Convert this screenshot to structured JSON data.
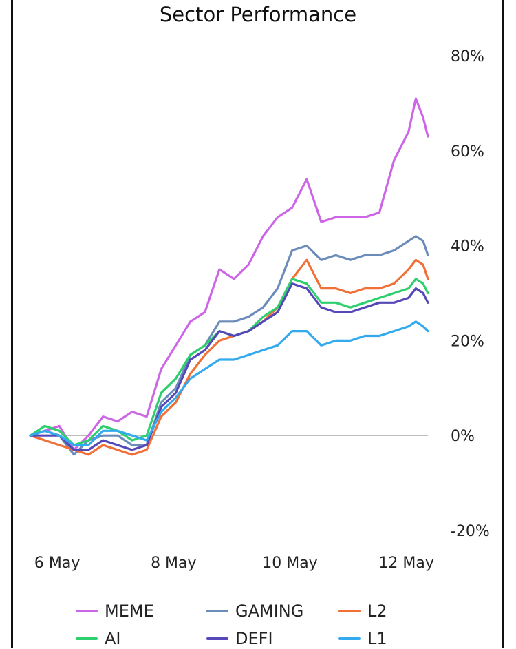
{
  "chart_data": {
    "type": "line",
    "title": "Sector Performance",
    "xlabel": "",
    "ylabel": "",
    "x_ticks": [
      "6 May",
      "8 May",
      "10 May",
      "12 May"
    ],
    "y_ticks": [
      "80%",
      "60%",
      "40%",
      "20%",
      "0%",
      "-20%"
    ],
    "ylim": [
      -20,
      80
    ],
    "y_unit": "%",
    "legend_position": "bottom",
    "baseline_zero": true,
    "x_start": "2024-05-05 18:00",
    "x_end": "2024-05-12 14:00",
    "series": [
      {
        "name": "MEME",
        "color": "#cc66e6",
        "x": [
          "2024-05-05 18:00",
          "2024-05-06 00:00",
          "2024-05-06 06:00",
          "2024-05-06 12:00",
          "2024-05-06 18:00",
          "2024-05-07 00:00",
          "2024-05-07 06:00",
          "2024-05-07 12:00",
          "2024-05-07 18:00",
          "2024-05-08 00:00",
          "2024-05-08 06:00",
          "2024-05-08 12:00",
          "2024-05-08 18:00",
          "2024-05-09 00:00",
          "2024-05-09 06:00",
          "2024-05-09 12:00",
          "2024-05-09 18:00",
          "2024-05-10 00:00",
          "2024-05-10 06:00",
          "2024-05-10 12:00",
          "2024-05-10 18:00",
          "2024-05-11 00:00",
          "2024-05-11 06:00",
          "2024-05-11 12:00",
          "2024-05-11 18:00",
          "2024-05-12 00:00",
          "2024-05-12 06:00",
          "2024-05-12 09:00",
          "2024-05-12 12:00",
          "2024-05-12 14:00"
        ],
        "values": [
          0,
          1,
          2,
          -3,
          0,
          4,
          3,
          5,
          4,
          14,
          19,
          24,
          26,
          35,
          33,
          36,
          42,
          46,
          48,
          54,
          45,
          46,
          46,
          46,
          47,
          58,
          64,
          71,
          67,
          63
        ]
      },
      {
        "name": "GAMING",
        "color": "#6b8cba",
        "x": [
          "2024-05-05 18:00",
          "2024-05-06 00:00",
          "2024-05-06 06:00",
          "2024-05-06 12:00",
          "2024-05-06 18:00",
          "2024-05-07 00:00",
          "2024-05-07 06:00",
          "2024-05-07 12:00",
          "2024-05-07 18:00",
          "2024-05-08 00:00",
          "2024-05-08 06:00",
          "2024-05-08 12:00",
          "2024-05-08 18:00",
          "2024-05-09 00:00",
          "2024-05-09 06:00",
          "2024-05-09 12:00",
          "2024-05-09 18:00",
          "2024-05-10 00:00",
          "2024-05-10 06:00",
          "2024-05-10 12:00",
          "2024-05-10 18:00",
          "2024-05-11 00:00",
          "2024-05-11 06:00",
          "2024-05-11 12:00",
          "2024-05-11 18:00",
          "2024-05-12 00:00",
          "2024-05-12 06:00",
          "2024-05-12 09:00",
          "2024-05-12 12:00",
          "2024-05-12 14:00"
        ],
        "values": [
          0,
          1,
          0,
          -4,
          -1,
          0,
          0,
          -2,
          -2,
          7,
          10,
          17,
          19,
          24,
          24,
          25,
          27,
          31,
          39,
          40,
          37,
          38,
          37,
          38,
          38,
          39,
          41,
          42,
          41,
          38
        ]
      },
      {
        "name": "L2",
        "color": "#f07038",
        "x": [
          "2024-05-05 18:00",
          "2024-05-06 00:00",
          "2024-05-06 06:00",
          "2024-05-06 12:00",
          "2024-05-06 18:00",
          "2024-05-07 00:00",
          "2024-05-07 06:00",
          "2024-05-07 12:00",
          "2024-05-07 18:00",
          "2024-05-08 00:00",
          "2024-05-08 06:00",
          "2024-05-08 12:00",
          "2024-05-08 18:00",
          "2024-05-09 00:00",
          "2024-05-09 06:00",
          "2024-05-09 12:00",
          "2024-05-09 18:00",
          "2024-05-10 00:00",
          "2024-05-10 06:00",
          "2024-05-10 12:00",
          "2024-05-10 18:00",
          "2024-05-11 00:00",
          "2024-05-11 06:00",
          "2024-05-11 12:00",
          "2024-05-11 18:00",
          "2024-05-12 00:00",
          "2024-05-12 06:00",
          "2024-05-12 09:00",
          "2024-05-12 12:00",
          "2024-05-12 14:00"
        ],
        "values": [
          0,
          -1,
          -2,
          -3,
          -4,
          -2,
          -3,
          -4,
          -3,
          4,
          7,
          13,
          17,
          20,
          21,
          22,
          24,
          27,
          33,
          37,
          31,
          31,
          30,
          31,
          31,
          32,
          35,
          37,
          36,
          33
        ]
      },
      {
        "name": "AI",
        "color": "#2ed06e",
        "x": [
          "2024-05-05 18:00",
          "2024-05-06 00:00",
          "2024-05-06 06:00",
          "2024-05-06 12:00",
          "2024-05-06 18:00",
          "2024-05-07 00:00",
          "2024-05-07 06:00",
          "2024-05-07 12:00",
          "2024-05-07 18:00",
          "2024-05-08 00:00",
          "2024-05-08 06:00",
          "2024-05-08 12:00",
          "2024-05-08 18:00",
          "2024-05-09 00:00",
          "2024-05-09 06:00",
          "2024-05-09 12:00",
          "2024-05-09 18:00",
          "2024-05-10 00:00",
          "2024-05-10 06:00",
          "2024-05-10 12:00",
          "2024-05-10 18:00",
          "2024-05-11 00:00",
          "2024-05-11 06:00",
          "2024-05-11 12:00",
          "2024-05-11 18:00",
          "2024-05-12 00:00",
          "2024-05-12 06:00",
          "2024-05-12 09:00",
          "2024-05-12 12:00",
          "2024-05-12 14:00"
        ],
        "values": [
          0,
          2,
          1,
          -2,
          -1,
          2,
          1,
          -1,
          0,
          9,
          12,
          17,
          19,
          22,
          21,
          22,
          25,
          27,
          33,
          32,
          28,
          28,
          27,
          28,
          29,
          30,
          31,
          33,
          32,
          30
        ]
      },
      {
        "name": "DEFI",
        "color": "#5548b8",
        "x": [
          "2024-05-05 18:00",
          "2024-05-06 00:00",
          "2024-05-06 06:00",
          "2024-05-06 12:00",
          "2024-05-06 18:00",
          "2024-05-07 00:00",
          "2024-05-07 06:00",
          "2024-05-07 12:00",
          "2024-05-07 18:00",
          "2024-05-08 00:00",
          "2024-05-08 06:00",
          "2024-05-08 12:00",
          "2024-05-08 18:00",
          "2024-05-09 00:00",
          "2024-05-09 06:00",
          "2024-05-09 12:00",
          "2024-05-09 18:00",
          "2024-05-10 00:00",
          "2024-05-10 06:00",
          "2024-05-10 12:00",
          "2024-05-10 18:00",
          "2024-05-11 00:00",
          "2024-05-11 06:00",
          "2024-05-11 12:00",
          "2024-05-11 18:00",
          "2024-05-12 00:00",
          "2024-05-12 06:00",
          "2024-05-12 09:00",
          "2024-05-12 12:00",
          "2024-05-12 14:00"
        ],
        "values": [
          0,
          0,
          0,
          -3,
          -3,
          -1,
          -2,
          -3,
          -2,
          6,
          9,
          16,
          18,
          22,
          21,
          22,
          24,
          26,
          32,
          31,
          27,
          26,
          26,
          27,
          28,
          28,
          29,
          31,
          30,
          28
        ]
      },
      {
        "name": "L1",
        "color": "#33aaee",
        "x": [
          "2024-05-05 18:00",
          "2024-05-06 00:00",
          "2024-05-06 06:00",
          "2024-05-06 12:00",
          "2024-05-06 18:00",
          "2024-05-07 00:00",
          "2024-05-07 06:00",
          "2024-05-07 12:00",
          "2024-05-07 18:00",
          "2024-05-08 00:00",
          "2024-05-08 06:00",
          "2024-05-08 12:00",
          "2024-05-08 18:00",
          "2024-05-09 00:00",
          "2024-05-09 06:00",
          "2024-05-09 12:00",
          "2024-05-09 18:00",
          "2024-05-10 00:00",
          "2024-05-10 06:00",
          "2024-05-10 12:00",
          "2024-05-10 18:00",
          "2024-05-11 00:00",
          "2024-05-11 06:00",
          "2024-05-11 12:00",
          "2024-05-11 18:00",
          "2024-05-12 00:00",
          "2024-05-12 06:00",
          "2024-05-12 09:00",
          "2024-05-12 12:00",
          "2024-05-12 14:00"
        ],
        "values": [
          0,
          1,
          0,
          -2,
          -2,
          1,
          1,
          0,
          -1,
          5,
          8,
          12,
          14,
          16,
          16,
          17,
          18,
          19,
          22,
          22,
          19,
          20,
          20,
          21,
          21,
          22,
          23,
          24,
          23,
          22
        ]
      }
    ]
  }
}
